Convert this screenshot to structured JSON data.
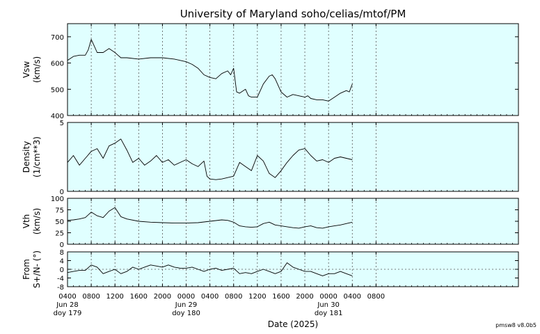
{
  "title": "University of Maryland  soho/celias/mtof/PM",
  "xlabel": "Date (2025)",
  "footer": "pmsw8 v8.0b5",
  "colors": {
    "panel_bg": "#e0ffff",
    "line": "#000000",
    "grid": "#555555"
  },
  "x_axis": {
    "range_hours": [
      0,
      76
    ],
    "ticks": [
      {
        "h": 0,
        "lines": [
          "0400",
          "Jun 28",
          "doy 179"
        ]
      },
      {
        "h": 4,
        "lines": [
          "0800"
        ]
      },
      {
        "h": 8,
        "lines": [
          "1200"
        ]
      },
      {
        "h": 12,
        "lines": [
          "1600"
        ]
      },
      {
        "h": 16,
        "lines": [
          "2000"
        ]
      },
      {
        "h": 20,
        "lines": [
          "0000",
          "Jun 29",
          "doy 180"
        ]
      },
      {
        "h": 24,
        "lines": [
          "0400"
        ]
      },
      {
        "h": 28,
        "lines": [
          "0800"
        ]
      },
      {
        "h": 32,
        "lines": [
          "1200"
        ]
      },
      {
        "h": 36,
        "lines": [
          "1600"
        ]
      },
      {
        "h": 40,
        "lines": [
          "2000"
        ]
      },
      {
        "h": 44,
        "lines": [
          "0000",
          "Jun 30",
          "doy 181"
        ]
      },
      {
        "h": 48,
        "lines": [
          "0400"
        ]
      },
      {
        "h": 52,
        "lines": [
          "0800"
        ]
      }
    ]
  },
  "chart_data": [
    {
      "type": "line",
      "ylabel": [
        "Vsw",
        "(km/s)"
      ],
      "ylim": [
        400,
        750
      ],
      "yticks": [
        400,
        500,
        600,
        700
      ],
      "zero_line": false,
      "series": [
        {
          "x": [
            0,
            1,
            2,
            3,
            3.5,
            4,
            4.5,
            5,
            6,
            7,
            8,
            8.5,
            9,
            10,
            12,
            14,
            16,
            18,
            19,
            20,
            21,
            22,
            23,
            24,
            25,
            26,
            27,
            27.5,
            28,
            28.5,
            29,
            30,
            30.5,
            31,
            32,
            33,
            34,
            34.5,
            35,
            36,
            37,
            38,
            39,
            40,
            40.5,
            41,
            42,
            43,
            44,
            45,
            46,
            47,
            47.5,
            48
          ],
          "y": [
            610,
            625,
            630,
            630,
            650,
            690,
            665,
            640,
            640,
            655,
            640,
            630,
            620,
            620,
            615,
            620,
            620,
            615,
            610,
            605,
            595,
            580,
            555,
            545,
            540,
            560,
            570,
            555,
            580,
            490,
            485,
            500,
            475,
            470,
            470,
            520,
            550,
            555,
            540,
            490,
            470,
            480,
            475,
            470,
            475,
            465,
            460,
            460,
            455,
            470,
            485,
            495,
            490,
            520
          ]
        }
      ]
    },
    {
      "type": "line",
      "ylabel": [
        "Density",
        "(1/cm**3)"
      ],
      "ylim": [
        0,
        5
      ],
      "yticks": [
        0,
        5
      ],
      "zero_line": false,
      "series": [
        {
          "x": [
            0,
            1,
            2,
            3,
            4,
            5,
            6,
            7,
            8,
            9,
            10,
            11,
            12,
            13,
            14,
            15,
            16,
            17,
            18,
            19,
            20,
            21,
            22,
            23,
            23.5,
            24,
            25,
            26,
            27,
            28,
            29,
            30,
            31,
            32,
            33,
            34,
            35,
            36,
            37,
            38,
            39,
            40,
            41,
            42,
            43,
            44,
            45,
            46,
            47,
            48
          ],
          "y": [
            2.1,
            2.6,
            1.9,
            2.4,
            2.9,
            3.1,
            2.4,
            3.3,
            3.5,
            3.8,
            3.0,
            2.1,
            2.4,
            1.9,
            2.2,
            2.6,
            2.1,
            2.3,
            1.9,
            2.1,
            2.3,
            2.0,
            1.8,
            2.2,
            1.1,
            0.9,
            0.85,
            0.9,
            1.0,
            1.1,
            2.1,
            1.8,
            1.5,
            2.6,
            2.2,
            1.3,
            1.0,
            1.5,
            2.1,
            2.6,
            3.0,
            3.1,
            2.6,
            2.2,
            2.3,
            2.1,
            2.4,
            2.5,
            2.4,
            2.3
          ]
        }
      ]
    },
    {
      "type": "line",
      "ylabel": [
        "Vth",
        "(km/s)"
      ],
      "ylim": [
        0,
        100
      ],
      "yticks": [
        0,
        25,
        50,
        75,
        100
      ],
      "zero_line": false,
      "series": [
        {
          "x": [
            0,
            1,
            2,
            3,
            4,
            5,
            6,
            7,
            8,
            9,
            10,
            12,
            14,
            16,
            18,
            20,
            22,
            24,
            26,
            27,
            28,
            29,
            30,
            31,
            32,
            33,
            34,
            35,
            36,
            37,
            38,
            39,
            40,
            41,
            42,
            43,
            44,
            45,
            46,
            47,
            48
          ],
          "y": [
            52,
            53,
            55,
            58,
            70,
            62,
            58,
            72,
            80,
            60,
            55,
            50,
            48,
            47,
            46,
            46,
            47,
            50,
            53,
            52,
            48,
            40,
            38,
            37,
            38,
            45,
            48,
            42,
            40,
            38,
            36,
            35,
            38,
            40,
            36,
            35,
            38,
            40,
            42,
            45,
            48
          ]
        }
      ]
    },
    {
      "type": "line",
      "ylabel": [
        "From",
        "S+/N- (°)"
      ],
      "ylim": [
        -8,
        8
      ],
      "yticks": [
        -8,
        -4,
        0,
        4,
        8
      ],
      "zero_line": true,
      "series": [
        {
          "x": [
            0,
            1,
            2,
            3,
            4,
            5,
            6,
            7,
            8,
            9,
            10,
            11,
            12,
            13,
            14,
            15,
            16,
            17,
            18,
            19,
            20,
            21,
            22,
            23,
            24,
            25,
            26,
            27,
            28,
            29,
            30,
            31,
            32,
            33,
            34,
            35,
            36,
            37,
            38,
            39,
            40,
            41,
            42,
            43,
            44,
            45,
            46,
            47,
            48
          ],
          "y": [
            -1.5,
            -1,
            -0.5,
            -0.5,
            2,
            1,
            -2,
            -1,
            0,
            -2,
            -1,
            1,
            0,
            1,
            2,
            1.5,
            1,
            2,
            1,
            0.5,
            0.5,
            1,
            0,
            -1,
            0,
            0.5,
            -0.5,
            0,
            0.5,
            -2,
            -1.5,
            -2,
            -1,
            0,
            -1,
            -2,
            -1,
            3,
            1,
            0,
            -1,
            -1,
            -2,
            -3,
            -2,
            -2,
            -1,
            -2,
            -3
          ]
        }
      ]
    }
  ]
}
